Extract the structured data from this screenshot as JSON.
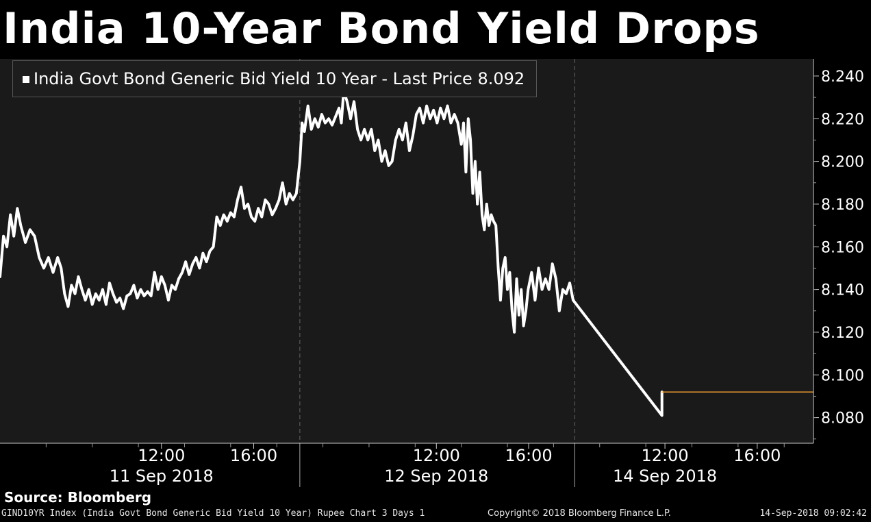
{
  "title": "India 10-Year Bond Yield Drops",
  "source": "Source: Bloomberg",
  "footer": {
    "left": "GIND10YR Index (India Govt Bond Generic Bid Yield 10 Year) Rupee Chart 3 Days 1",
    "copyright": "Copyright© 2018 Bloomberg Finance L.P.",
    "timestamp": "14-Sep-2018 09:02:42"
  },
  "colors": {
    "background": "#000000",
    "plot_background": "#1a1a1a",
    "series": "#ffffff",
    "last_price_line": "#f0a030"
  },
  "chart_data": {
    "type": "line",
    "legend": {
      "label": "India Govt Bond Generic Bid Yield 10 Year - Last Price",
      "last_price": "8.092",
      "placement": "top-left"
    },
    "ylim": [
      8.068,
      8.248
    ],
    "y_ticks": [
      8.08,
      8.1,
      8.12,
      8.14,
      8.16,
      8.18,
      8.2,
      8.22,
      8.24
    ],
    "y_tick_labels": [
      "8.080",
      "8.100",
      "8.120",
      "8.140",
      "8.160",
      "8.180",
      "8.200",
      "8.220",
      "8.240"
    ],
    "x_time_ticks": [
      {
        "label": "12:00",
        "t": 3.0
      },
      {
        "label": "16:00",
        "t": 7.0
      },
      {
        "label": "12:00",
        "t": 14.92
      },
      {
        "label": "16:00",
        "t": 18.92
      },
      {
        "label": "12:00",
        "t": 24.83
      },
      {
        "label": "16:00",
        "t": 28.83
      }
    ],
    "x_day_labels": [
      {
        "label": "11 Sep 2018",
        "t": 3.0
      },
      {
        "label": "12 Sep 2018",
        "t": 14.92
      },
      {
        "label": "14 Sep 2018",
        "t": 24.83
      }
    ],
    "day_separators": [
      9.0,
      20.92
    ],
    "xlim": [
      -4.0,
      31.27
    ],
    "grid": "vertical dashed at day boundaries",
    "series": [
      {
        "points": [
          [
            -4.0,
            8.146
          ],
          [
            -3.85,
            8.165
          ],
          [
            -3.7,
            8.16
          ],
          [
            -3.55,
            8.175
          ],
          [
            -3.4,
            8.165
          ],
          [
            -3.25,
            8.178
          ],
          [
            -3.1,
            8.17
          ],
          [
            -2.9,
            8.162
          ],
          [
            -2.7,
            8.168
          ],
          [
            -2.5,
            8.165
          ],
          [
            -2.3,
            8.155
          ],
          [
            -2.1,
            8.15
          ],
          [
            -1.9,
            8.155
          ],
          [
            -1.7,
            8.148
          ],
          [
            -1.5,
            8.155
          ],
          [
            -1.35,
            8.15
          ],
          [
            -1.2,
            8.138
          ],
          [
            -1.05,
            8.132
          ],
          [
            -0.9,
            8.142
          ],
          [
            -0.75,
            8.138
          ],
          [
            -0.6,
            8.146
          ],
          [
            -0.45,
            8.14
          ],
          [
            -0.3,
            8.135
          ],
          [
            -0.15,
            8.14
          ],
          [
            0.0,
            8.133
          ],
          [
            0.15,
            8.138
          ],
          [
            0.3,
            8.135
          ],
          [
            0.45,
            8.14
          ],
          [
            0.6,
            8.133
          ],
          [
            0.75,
            8.143
          ],
          [
            0.9,
            8.138
          ],
          [
            1.05,
            8.134
          ],
          [
            1.2,
            8.136
          ],
          [
            1.35,
            8.131
          ],
          [
            1.5,
            8.137
          ],
          [
            1.65,
            8.138
          ],
          [
            1.8,
            8.142
          ],
          [
            1.95,
            8.136
          ],
          [
            2.1,
            8.14
          ],
          [
            2.25,
            8.137
          ],
          [
            2.4,
            8.139
          ],
          [
            2.55,
            8.137
          ],
          [
            2.7,
            8.148
          ],
          [
            2.85,
            8.14
          ],
          [
            3.0,
            8.146
          ],
          [
            3.15,
            8.142
          ],
          [
            3.3,
            8.135
          ],
          [
            3.45,
            8.142
          ],
          [
            3.6,
            8.14
          ],
          [
            3.75,
            8.145
          ],
          [
            3.9,
            8.148
          ],
          [
            4.05,
            8.153
          ],
          [
            4.2,
            8.147
          ],
          [
            4.35,
            8.152
          ],
          [
            4.5,
            8.155
          ],
          [
            4.65,
            8.15
          ],
          [
            4.8,
            8.157
          ],
          [
            4.95,
            8.153
          ],
          [
            5.1,
            8.158
          ],
          [
            5.25,
            8.16
          ],
          [
            5.4,
            8.174
          ],
          [
            5.55,
            8.17
          ],
          [
            5.7,
            8.175
          ],
          [
            5.85,
            8.172
          ],
          [
            6.0,
            8.176
          ],
          [
            6.15,
            8.174
          ],
          [
            6.3,
            8.182
          ],
          [
            6.45,
            8.188
          ],
          [
            6.6,
            8.178
          ],
          [
            6.75,
            8.18
          ],
          [
            6.9,
            8.174
          ],
          [
            7.05,
            8.172
          ],
          [
            7.2,
            8.178
          ],
          [
            7.35,
            8.174
          ],
          [
            7.5,
            8.182
          ],
          [
            7.65,
            8.18
          ],
          [
            7.8,
            8.175
          ],
          [
            7.95,
            8.178
          ],
          [
            8.1,
            8.182
          ],
          [
            8.25,
            8.19
          ],
          [
            8.4,
            8.18
          ],
          [
            8.55,
            8.185
          ],
          [
            8.7,
            8.182
          ],
          [
            8.85,
            8.185
          ],
          [
            9.0,
            8.2
          ],
          [
            9.1,
            8.218
          ],
          [
            9.2,
            8.214
          ],
          [
            9.35,
            8.226
          ],
          [
            9.5,
            8.215
          ],
          [
            9.65,
            8.22
          ],
          [
            9.8,
            8.216
          ],
          [
            9.95,
            8.222
          ],
          [
            10.1,
            8.218
          ],
          [
            10.25,
            8.22
          ],
          [
            10.4,
            8.217
          ],
          [
            10.55,
            8.221
          ],
          [
            10.7,
            8.225
          ],
          [
            10.8,
            8.218
          ],
          [
            10.9,
            8.233
          ],
          [
            11.05,
            8.228
          ],
          [
            11.2,
            8.22
          ],
          [
            11.35,
            8.228
          ],
          [
            11.5,
            8.215
          ],
          [
            11.65,
            8.21
          ],
          [
            11.8,
            8.215
          ],
          [
            11.95,
            8.21
          ],
          [
            12.1,
            8.215
          ],
          [
            12.25,
            8.205
          ],
          [
            12.4,
            8.21
          ],
          [
            12.55,
            8.2
          ],
          [
            12.7,
            8.205
          ],
          [
            12.85,
            8.198
          ],
          [
            13.0,
            8.2
          ],
          [
            13.15,
            8.21
          ],
          [
            13.3,
            8.215
          ],
          [
            13.45,
            8.21
          ],
          [
            13.6,
            8.218
          ],
          [
            13.75,
            8.205
          ],
          [
            13.9,
            8.212
          ],
          [
            14.05,
            8.222
          ],
          [
            14.2,
            8.225
          ],
          [
            14.35,
            8.218
          ],
          [
            14.5,
            8.226
          ],
          [
            14.65,
            8.22
          ],
          [
            14.8,
            8.224
          ],
          [
            14.95,
            8.218
          ],
          [
            15.1,
            8.225
          ],
          [
            15.25,
            8.22
          ],
          [
            15.4,
            8.226
          ],
          [
            15.55,
            8.218
          ],
          [
            15.7,
            8.222
          ],
          [
            15.85,
            8.218
          ],
          [
            16.0,
            8.208
          ],
          [
            16.1,
            8.218
          ],
          [
            16.2,
            8.195
          ],
          [
            16.3,
            8.22
          ],
          [
            16.4,
            8.21
          ],
          [
            16.5,
            8.185
          ],
          [
            16.6,
            8.2
          ],
          [
            16.7,
            8.18
          ],
          [
            16.8,
            8.195
          ],
          [
            16.9,
            8.175
          ],
          [
            17.0,
            8.168
          ],
          [
            17.1,
            8.18
          ],
          [
            17.2,
            8.17
          ],
          [
            17.3,
            8.175
          ],
          [
            17.4,
            8.172
          ],
          [
            17.5,
            8.17
          ],
          [
            17.6,
            8.15
          ],
          [
            17.7,
            8.135
          ],
          [
            17.8,
            8.15
          ],
          [
            17.9,
            8.155
          ],
          [
            18.0,
            8.14
          ],
          [
            18.1,
            8.148
          ],
          [
            18.2,
            8.13
          ],
          [
            18.3,
            8.12
          ],
          [
            18.4,
            8.145
          ],
          [
            18.5,
            8.128
          ],
          [
            18.6,
            8.14
          ],
          [
            18.7,
            8.123
          ],
          [
            18.8,
            8.13
          ],
          [
            18.9,
            8.14
          ],
          [
            19.05,
            8.148
          ],
          [
            19.2,
            8.135
          ],
          [
            19.35,
            8.15
          ],
          [
            19.5,
            8.14
          ],
          [
            19.65,
            8.145
          ],
          [
            19.8,
            8.14
          ],
          [
            19.95,
            8.152
          ],
          [
            20.1,
            8.145
          ],
          [
            20.25,
            8.13
          ],
          [
            20.4,
            8.14
          ],
          [
            20.55,
            8.138
          ],
          [
            20.7,
            8.143
          ],
          [
            20.85,
            8.135
          ],
          [
            24.7,
            8.081
          ],
          [
            24.7,
            8.092
          ]
        ]
      },
      {
        "name": "Last Price",
        "points": [
          [
            24.7,
            8.092
          ],
          [
            31.27,
            8.092
          ]
        ]
      }
    ]
  }
}
